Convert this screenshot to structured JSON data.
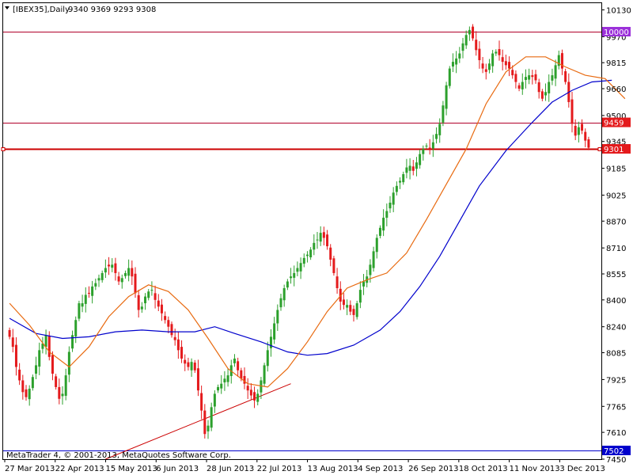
{
  "header": {
    "symbol": "[IBEX35],Daily",
    "ohlc": "9340 9369 9293 9308"
  },
  "copyright": "MetaTrader 4, © 2001-2013, MetaQuotes Software Corp.",
  "colors": {
    "bull": "#2ca02c",
    "bear": "#e41a1c",
    "ma_fast": "#e86a10",
    "ma_slow": "#0000cc",
    "hline": "#b0002a",
    "trendline": "#cc0000",
    "current_price": "#cc0000",
    "tag_10000": "#9b30d9",
    "tag_9459": "#e41a1c",
    "tag_9301": "#e41a1c",
    "tag_7502": "#0000cc"
  },
  "chart_data": {
    "type": "candlestick",
    "ylim": [
      7450,
      10170
    ],
    "y_ticks": [
      10130,
      9970,
      9815,
      9660,
      9500,
      9345,
      9185,
      9025,
      8870,
      8710,
      8555,
      8400,
      8240,
      8085,
      7925,
      7765,
      7610,
      7450
    ],
    "x_labels": [
      "27 Mar 2013",
      "22 Apr 2013",
      "15 May 2013",
      "6 Jun 2013",
      "28 Jun 2013",
      "22 Jul 2013",
      "13 Aug 2013",
      "4 Sep 2013",
      "26 Sep 2013",
      "18 Oct 2013",
      "11 Nov 2013",
      "3 Dec 2013"
    ],
    "horizontal_levels": [
      {
        "label": "10000",
        "value": 10000
      },
      {
        "label": "9459",
        "value": 9459
      },
      {
        "label": "9301",
        "value": 9301
      },
      {
        "label": "7502",
        "value": 7502
      }
    ],
    "candles_close": [
      8180,
      8120,
      8000,
      7920,
      7850,
      7820,
      7870,
      7940,
      8010,
      8100,
      8140,
      8190,
      8060,
      7960,
      7880,
      7810,
      7840,
      7950,
      8090,
      8190,
      8280,
      8380,
      8380,
      8430,
      8440,
      8480,
      8500,
      8530,
      8560,
      8590,
      8600,
      8610,
      8560,
      8510,
      8530,
      8560,
      8590,
      8540,
      8440,
      8340,
      8360,
      8420,
      8450,
      8460,
      8400,
      8360,
      8320,
      8280,
      8240,
      8190,
      8160,
      8100,
      8050,
      8020,
      8000,
      8030,
      7980,
      7860,
      7740,
      7600,
      7650,
      7760,
      7840,
      7880,
      7900,
      7930,
      7950,
      8010,
      8050,
      7980,
      7930,
      7900,
      7860,
      7830,
      7800,
      7840,
      7920,
      8010,
      8100,
      8180,
      8260,
      8340,
      8410,
      8470,
      8510,
      8540,
      8560,
      8590,
      8620,
      8650,
      8670,
      8700,
      8740,
      8760,
      8800,
      8770,
      8720,
      8640,
      8560,
      8470,
      8390,
      8370,
      8370,
      8330,
      8310,
      8380,
      8460,
      8510,
      8540,
      8610,
      8690,
      8770,
      8830,
      8890,
      8930,
      8980,
      9040,
      9080,
      9110,
      9150,
      9190,
      9200,
      9170,
      9220,
      9270,
      9300,
      9320,
      9300,
      9340,
      9390,
      9450,
      9560,
      9680,
      9780,
      9820,
      9840,
      9870,
      9930,
      9980,
      10010,
      9960,
      9890,
      9830,
      9780,
      9760,
      9810,
      9870,
      9880,
      9860,
      9820,
      9800,
      9780,
      9740,
      9700,
      9660,
      9700,
      9730,
      9740,
      9730,
      9710,
      9640,
      9600,
      9640,
      9700,
      9740,
      9800,
      9860,
      9780,
      9700,
      9580,
      9450,
      9380,
      9430,
      9410,
      9350,
      9308
    ],
    "ma_fast": [
      {
        "i": 0,
        "v": 8380
      },
      {
        "i": 6,
        "v": 8250
      },
      {
        "i": 12,
        "v": 8090
      },
      {
        "i": 18,
        "v": 8000
      },
      {
        "i": 24,
        "v": 8120
      },
      {
        "i": 30,
        "v": 8300
      },
      {
        "i": 36,
        "v": 8420
      },
      {
        "i": 42,
        "v": 8490
      },
      {
        "i": 48,
        "v": 8450
      },
      {
        "i": 54,
        "v": 8340
      },
      {
        "i": 60,
        "v": 8170
      },
      {
        "i": 66,
        "v": 7990
      },
      {
        "i": 72,
        "v": 7900
      },
      {
        "i": 78,
        "v": 7880
      },
      {
        "i": 84,
        "v": 7990
      },
      {
        "i": 90,
        "v": 8150
      },
      {
        "i": 96,
        "v": 8330
      },
      {
        "i": 102,
        "v": 8470
      },
      {
        "i": 108,
        "v": 8520
      },
      {
        "i": 114,
        "v": 8560
      },
      {
        "i": 120,
        "v": 8680
      },
      {
        "i": 126,
        "v": 8880
      },
      {
        "i": 132,
        "v": 9090
      },
      {
        "i": 138,
        "v": 9300
      },
      {
        "i": 144,
        "v": 9570
      },
      {
        "i": 150,
        "v": 9760
      },
      {
        "i": 156,
        "v": 9850
      },
      {
        "i": 162,
        "v": 9850
      },
      {
        "i": 168,
        "v": 9790
      },
      {
        "i": 174,
        "v": 9740
      },
      {
        "i": 180,
        "v": 9720
      },
      {
        "i": 186,
        "v": 9600
      }
    ],
    "ma_slow": [
      {
        "i": 0,
        "v": 8290
      },
      {
        "i": 8,
        "v": 8200
      },
      {
        "i": 16,
        "v": 8170
      },
      {
        "i": 24,
        "v": 8180
      },
      {
        "i": 32,
        "v": 8210
      },
      {
        "i": 40,
        "v": 8220
      },
      {
        "i": 48,
        "v": 8210
      },
      {
        "i": 56,
        "v": 8210
      },
      {
        "i": 62,
        "v": 8240
      },
      {
        "i": 68,
        "v": 8200
      },
      {
        "i": 76,
        "v": 8150
      },
      {
        "i": 84,
        "v": 8090
      },
      {
        "i": 90,
        "v": 8070
      },
      {
        "i": 96,
        "v": 8080
      },
      {
        "i": 104,
        "v": 8130
      },
      {
        "i": 112,
        "v": 8220
      },
      {
        "i": 118,
        "v": 8330
      },
      {
        "i": 124,
        "v": 8480
      },
      {
        "i": 130,
        "v": 8660
      },
      {
        "i": 136,
        "v": 8870
      },
      {
        "i": 142,
        "v": 9080
      },
      {
        "i": 150,
        "v": 9290
      },
      {
        "i": 158,
        "v": 9460
      },
      {
        "i": 164,
        "v": 9580
      },
      {
        "i": 170,
        "v": 9650
      },
      {
        "i": 176,
        "v": 9700
      },
      {
        "i": 182,
        "v": 9710
      }
    ],
    "trendline": [
      {
        "i": 29,
        "v": 7450
      },
      {
        "i": 85,
        "v": 7900
      }
    ]
  }
}
